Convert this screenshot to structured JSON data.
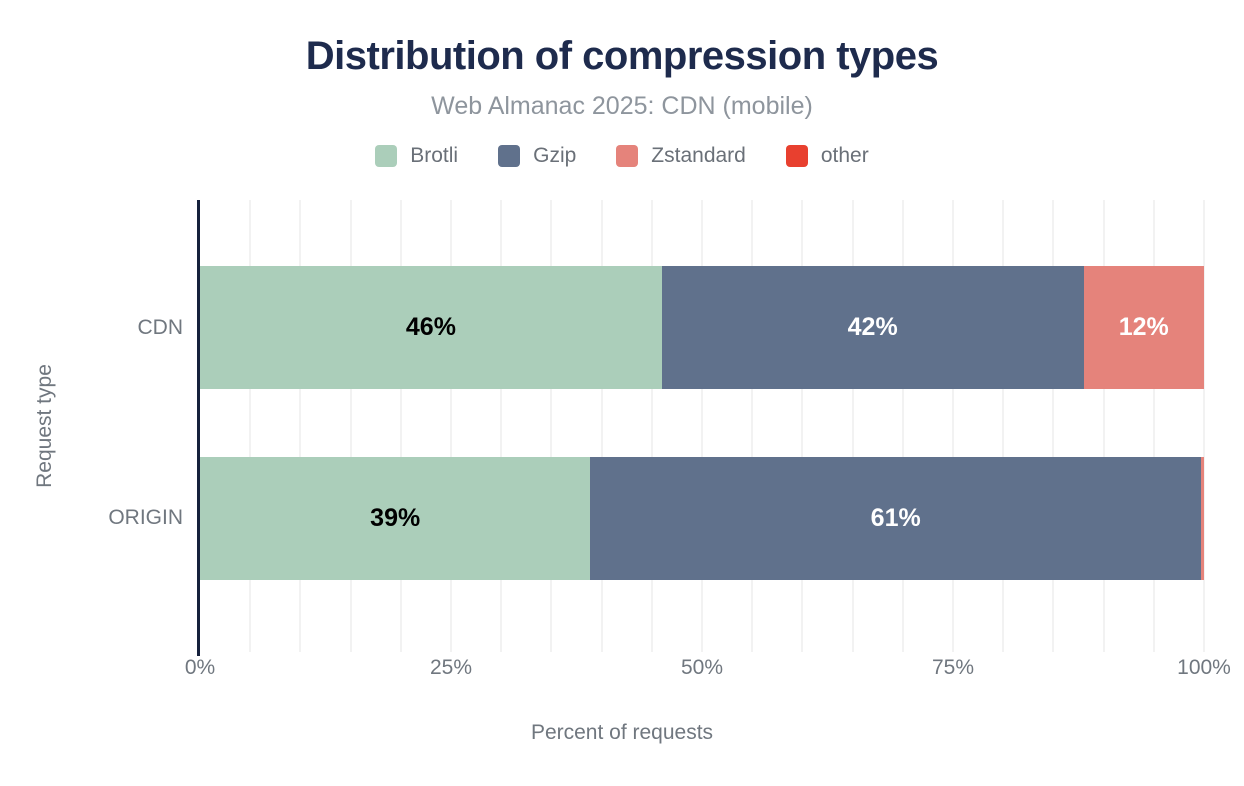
{
  "header": {
    "title": "Distribution of compression types",
    "subtitle": "Web Almanac 2025: CDN (mobile)"
  },
  "colors": {
    "title": "#1e2b4d",
    "axis_line": "#16213c",
    "axis_text": "#70777f",
    "gridline": "#f2f2f2",
    "background": "#ffffff"
  },
  "chart_data": {
    "type": "bar",
    "stacked": true,
    "orientation": "horizontal",
    "title": "Distribution of compression types",
    "subtitle": "Web Almanac 2025: CDN (mobile)",
    "categories": [
      "CDN",
      "ORIGIN"
    ],
    "series": [
      {
        "name": "Brotli",
        "color": "#abceba",
        "label_color": "#000000",
        "values": [
          46,
          39
        ]
      },
      {
        "name": "Gzip",
        "color": "#60718c",
        "label_color": "#ffffff",
        "values": [
          42,
          61
        ]
      },
      {
        "name": "Zstandard",
        "color": "#e5837b",
        "label_color": "#ffffff",
        "values": [
          12,
          0.3
        ]
      },
      {
        "name": "other",
        "color": "#e8402f",
        "label_color": "#ffffff",
        "values": [
          0,
          0
        ]
      }
    ],
    "bar_labels_shown": [
      "46%",
      "42%",
      "12%",
      "39%",
      "61%"
    ],
    "xlabel": "Percent of requests",
    "ylabel": "Request type",
    "xlim": [
      0,
      100
    ],
    "x_ticks": [
      {
        "label": "0%",
        "value": 0
      },
      {
        "label": "25%",
        "value": 25
      },
      {
        "label": "50%",
        "value": 50
      },
      {
        "label": "75%",
        "value": 75
      },
      {
        "label": "100%",
        "value": 100
      }
    ],
    "grid": "vertical minor gridlines every 5%",
    "legend_position": "top"
  }
}
